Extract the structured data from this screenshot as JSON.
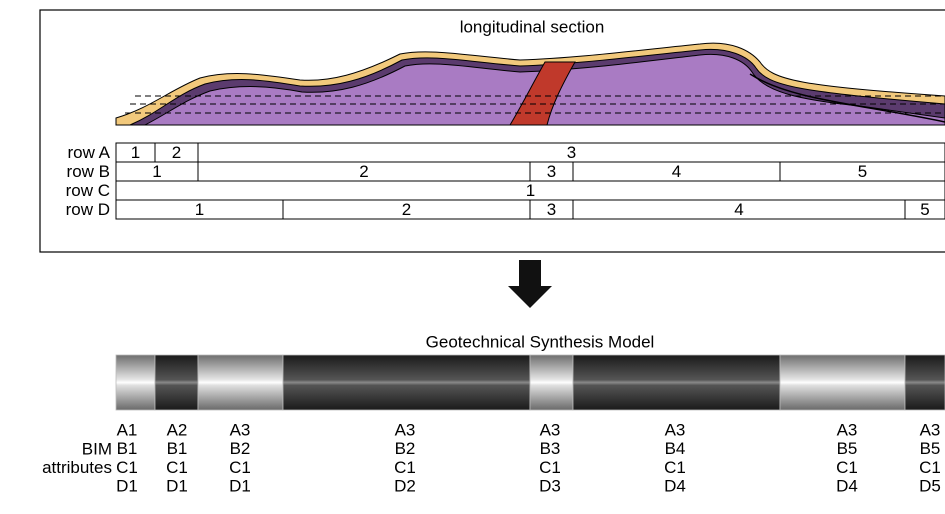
{
  "section": {
    "title": "longitudinal section",
    "rows": [
      {
        "label": "row A",
        "cells": [
          "1",
          "2",
          "3"
        ]
      },
      {
        "label": "row B",
        "cells": [
          "1",
          "2",
          "3",
          "4",
          "5"
        ]
      },
      {
        "label": "row C",
        "cells": [
          "1"
        ]
      },
      {
        "label": "row D",
        "cells": [
          "1",
          "2",
          "3",
          "4",
          "5"
        ]
      }
    ]
  },
  "model": {
    "title": "Geotechnical Synthesis Model",
    "attributes_label": [
      "BIM",
      "attributes"
    ],
    "columns": [
      [
        "A1",
        "B1",
        "C1",
        "D1"
      ],
      [
        "A2",
        "B1",
        "C1",
        "D1"
      ],
      [
        "A3",
        "B2",
        "C1",
        "D1"
      ],
      [
        "A3",
        "B2",
        "C1",
        "D2"
      ],
      [
        "A3",
        "B3",
        "C1",
        "D3"
      ],
      [
        "A3",
        "B4",
        "C1",
        "D4"
      ],
      [
        "A3",
        "B5",
        "C1",
        "D4"
      ],
      [
        "A3",
        "B5",
        "C1",
        "D5"
      ]
    ]
  }
}
